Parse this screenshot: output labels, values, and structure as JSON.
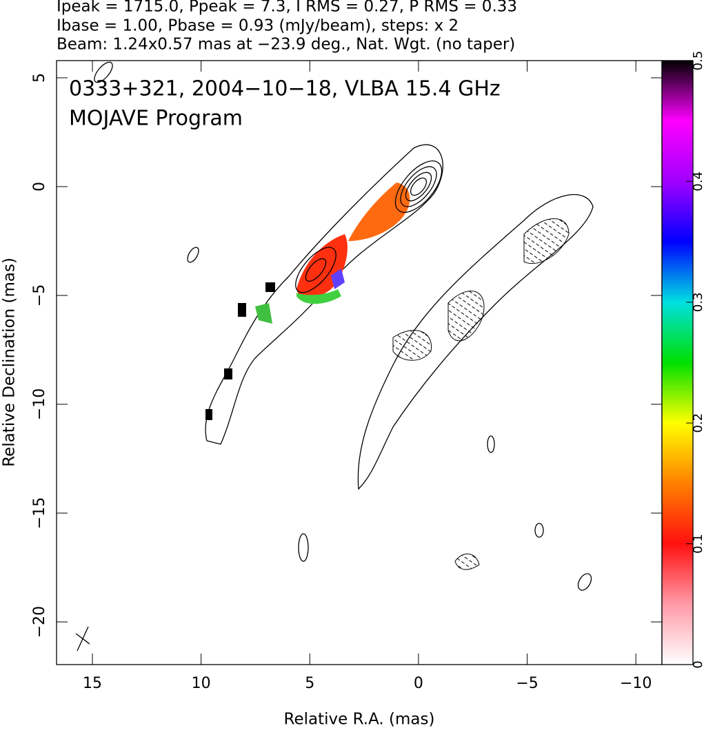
{
  "chart_data": {
    "type": "contour",
    "title_lines": [
      "Ipeak = 1715.0, Ppeak = 7.3, I RMS = 0.27, P RMS = 0.33",
      "Ibase = 1.00, Pbase = 0.93 (mJy/beam), steps: x 2",
      "Beam: 1.24x0.57 mas at −23.9 deg., Nat. Wgt. (no taper)"
    ],
    "annotations": [
      "0333+321, 2004−10−18, VLBA 15.4 GHz",
      "MOJAVE Program"
    ],
    "xlabel": "Relative R.A. (mas)",
    "ylabel": "Relative Declination (mas)",
    "xlim": [
      16.65,
      -11.2
    ],
    "ylim": [
      -21.96,
      5.79
    ],
    "xticks": [
      15,
      10,
      5,
      0,
      {
        "value": -5,
        "label": "−5"
      },
      {
        "value": -10,
        "label": "−10"
      }
    ],
    "yticks": [
      5,
      0,
      {
        "value": -5,
        "label": "−5"
      },
      {
        "value": -10,
        "label": "−10"
      },
      {
        "value": -15,
        "label": "−15"
      },
      {
        "value": -20,
        "label": "−20"
      }
    ],
    "colorbar_lim": [
      0,
      0.5
    ],
    "colorbar_ticks": [
      0,
      0.1,
      0.2,
      0.3,
      0.4,
      0.5
    ],
    "colormap": [
      "#ffffff",
      "#ff9aa8",
      "#ff1010",
      "#ff8000",
      "#ffff00",
      "#00e000",
      "#00e0e0",
      "#0000ff",
      "#a000ff",
      "#ff00ff",
      "#000000"
    ]
  }
}
